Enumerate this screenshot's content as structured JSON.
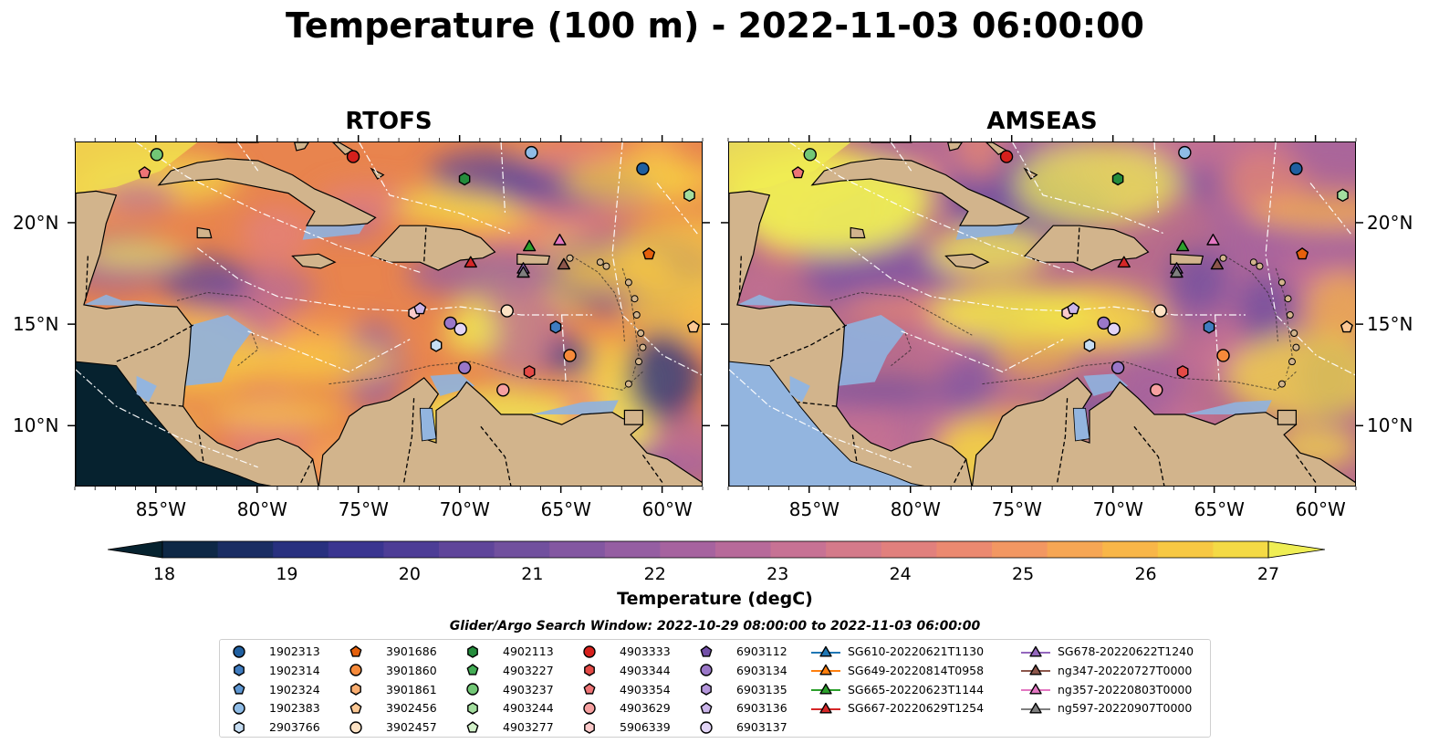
{
  "title": "Temperature (100 m) - 2022-11-03 06:00:00",
  "panels": [
    {
      "title": "RTOFS",
      "model": "rtofs"
    },
    {
      "title": "AMSEAS",
      "model": "amseas"
    }
  ],
  "lon_ticks": [
    "85°W",
    "80°W",
    "75°W",
    "70°W",
    "65°W",
    "60°W"
  ],
  "lat_ticks": [
    "20°N",
    "15°N",
    "10°N"
  ],
  "colorbar": {
    "label": "Temperature (degC)",
    "ticks": [
      "18",
      "19",
      "20",
      "21",
      "22",
      "23",
      "24",
      "25",
      "26",
      "27"
    ],
    "colors": [
      "#06222f",
      "#0e2846",
      "#1a2d63",
      "#28307f",
      "#3a3590",
      "#4d3d96",
      "#5f459a",
      "#71509e",
      "#8357a1",
      "#955ea2",
      "#a6639f",
      "#b76a9a",
      "#c77294",
      "#d47a8a",
      "#e1807d",
      "#eb8970",
      "#f29762",
      "#f6a654",
      "#f8b648",
      "#f7c843",
      "#f4da45",
      "#efee54"
    ]
  },
  "legend": {
    "title": "Glider/Argo Search Window: 2022-10-29 08:00:00 to 2022-11-03 06:00:00",
    "columns": [
      [
        {
          "label": "1902313",
          "marker": "circle",
          "color": "#1f5fa0"
        },
        {
          "label": "1902314",
          "marker": "hexagon",
          "color": "#3f7cc0"
        },
        {
          "label": "1902324",
          "marker": "pentagon",
          "color": "#5d96d2"
        },
        {
          "label": "1902383",
          "marker": "circle",
          "color": "#8fbce6"
        },
        {
          "label": "2903766",
          "marker": "hexagon",
          "color": "#c6ddf2"
        }
      ],
      [
        {
          "label": "3901686",
          "marker": "pentagon",
          "color": "#e5600c"
        },
        {
          "label": "3901860",
          "marker": "circle",
          "color": "#f68a3a"
        },
        {
          "label": "3901861",
          "marker": "hexagon",
          "color": "#f9ad70"
        },
        {
          "label": "3902456",
          "marker": "pentagon",
          "color": "#fcc894"
        },
        {
          "label": "3902457",
          "marker": "circle",
          "color": "#fde2c4"
        }
      ],
      [
        {
          "label": "4902113",
          "marker": "hexagon",
          "color": "#248c3c"
        },
        {
          "label": "4903227",
          "marker": "pentagon",
          "color": "#43ad55"
        },
        {
          "label": "4903237",
          "marker": "circle",
          "color": "#72c776"
        },
        {
          "label": "4903244",
          "marker": "hexagon",
          "color": "#a3dd9e"
        },
        {
          "label": "4903277",
          "marker": "pentagon",
          "color": "#d2f0c9"
        }
      ],
      [
        {
          "label": "4903333",
          "marker": "circle",
          "color": "#d6201c"
        },
        {
          "label": "4903344",
          "marker": "hexagon",
          "color": "#e44a46"
        },
        {
          "label": "4903354",
          "marker": "pentagon",
          "color": "#ee7476"
        },
        {
          "label": "4903629",
          "marker": "circle",
          "color": "#f6a0a0"
        },
        {
          "label": "5906339",
          "marker": "hexagon",
          "color": "#fbcaca"
        }
      ],
      [
        {
          "label": "6903112",
          "marker": "pentagon",
          "color": "#7350a8"
        },
        {
          "label": "6903134",
          "marker": "circle",
          "color": "#9a77c8"
        },
        {
          "label": "6903135",
          "marker": "hexagon",
          "color": "#b496db"
        },
        {
          "label": "6903136",
          "marker": "pentagon",
          "color": "#cbb5ea"
        },
        {
          "label": "6903137",
          "marker": "circle",
          "color": "#e2d4f6"
        }
      ],
      [
        {
          "label": "SG610-20220621T1130",
          "marker": "triangle",
          "color": "#1f77b4"
        },
        {
          "label": "SG649-20220814T0958",
          "marker": "triangle",
          "color": "#ff7f0e"
        },
        {
          "label": "SG665-20220623T1144",
          "marker": "triangle",
          "color": "#2ca02c"
        },
        {
          "label": "SG667-20220629T1254",
          "marker": "triangle",
          "color": "#d62728"
        }
      ],
      [
        {
          "label": "SG678-20220622T1240",
          "marker": "triangle",
          "color": "#9467bd"
        },
        {
          "label": "ng347-20220727T0000",
          "marker": "triangle",
          "color": "#8c564b"
        },
        {
          "label": "ng357-20220803T0000",
          "marker": "triangle",
          "color": "#e377c2"
        },
        {
          "label": "ng597-20220907T0000",
          "marker": "triangle",
          "color": "#7f7f7f"
        }
      ]
    ]
  },
  "map_extent": {
    "lon": [
      -89,
      -58
    ],
    "lat": [
      7,
      24
    ]
  },
  "points": [
    {
      "id": "4903237",
      "lon": -85,
      "lat": 23.4
    },
    {
      "id": "4903354",
      "lon": -85.6,
      "lat": 22.5
    },
    {
      "id": "4903333",
      "lon": -75.3,
      "lat": 23.3
    },
    {
      "id": "4902113",
      "lon": -69.8,
      "lat": 22.2
    },
    {
      "id": "1902383",
      "lon": -66.5,
      "lat": 23.5
    },
    {
      "id": "1902313",
      "lon": -61,
      "lat": 22.7
    },
    {
      "id": "4903244",
      "lon": -58.7,
      "lat": 21.4
    },
    {
      "id": "3901686",
      "lon": -60.7,
      "lat": 18.5
    },
    {
      "id": "5906339",
      "lon": -72.3,
      "lat": 15.6
    },
    {
      "id": "6903136",
      "lon": -72,
      "lat": 15.8
    },
    {
      "id": "3902457",
      "lon": -67.7,
      "lat": 15.7
    },
    {
      "id": "6903134",
      "lon": -70.5,
      "lat": 15.1
    },
    {
      "id": "6903137",
      "lon": -70,
      "lat": 14.8
    },
    {
      "id": "2903766",
      "lon": -71.2,
      "lat": 14
    },
    {
      "id": "1902314",
      "lon": -65.3,
      "lat": 14.9
    },
    {
      "id": "3901860",
      "lon": -64.6,
      "lat": 13.5
    },
    {
      "id": "6903134",
      "lon": -69.8,
      "lat": 12.9
    },
    {
      "id": "4903344",
      "lon": -66.6,
      "lat": 12.7
    },
    {
      "id": "4903629",
      "lon": -67.9,
      "lat": 11.8
    },
    {
      "id": "3902456",
      "lon": -58.5,
      "lat": 14.9
    },
    {
      "id": "SG665-20220623T1144",
      "lon": -66.6,
      "lat": 18.9
    },
    {
      "id": "ng357-20220803T0000",
      "lon": -65.1,
      "lat": 19.2
    },
    {
      "id": "SG667-20220629T1254",
      "lon": -69.5,
      "lat": 18.1
    },
    {
      "id": "SG678-20220622T1240",
      "lon": -66.9,
      "lat": 17.8
    },
    {
      "id": "ng597-20220907T0000",
      "lon": -66.9,
      "lat": 17.6
    },
    {
      "id": "ng347-20220727T0000",
      "lon": -64.9,
      "lat": 18
    }
  ]
}
